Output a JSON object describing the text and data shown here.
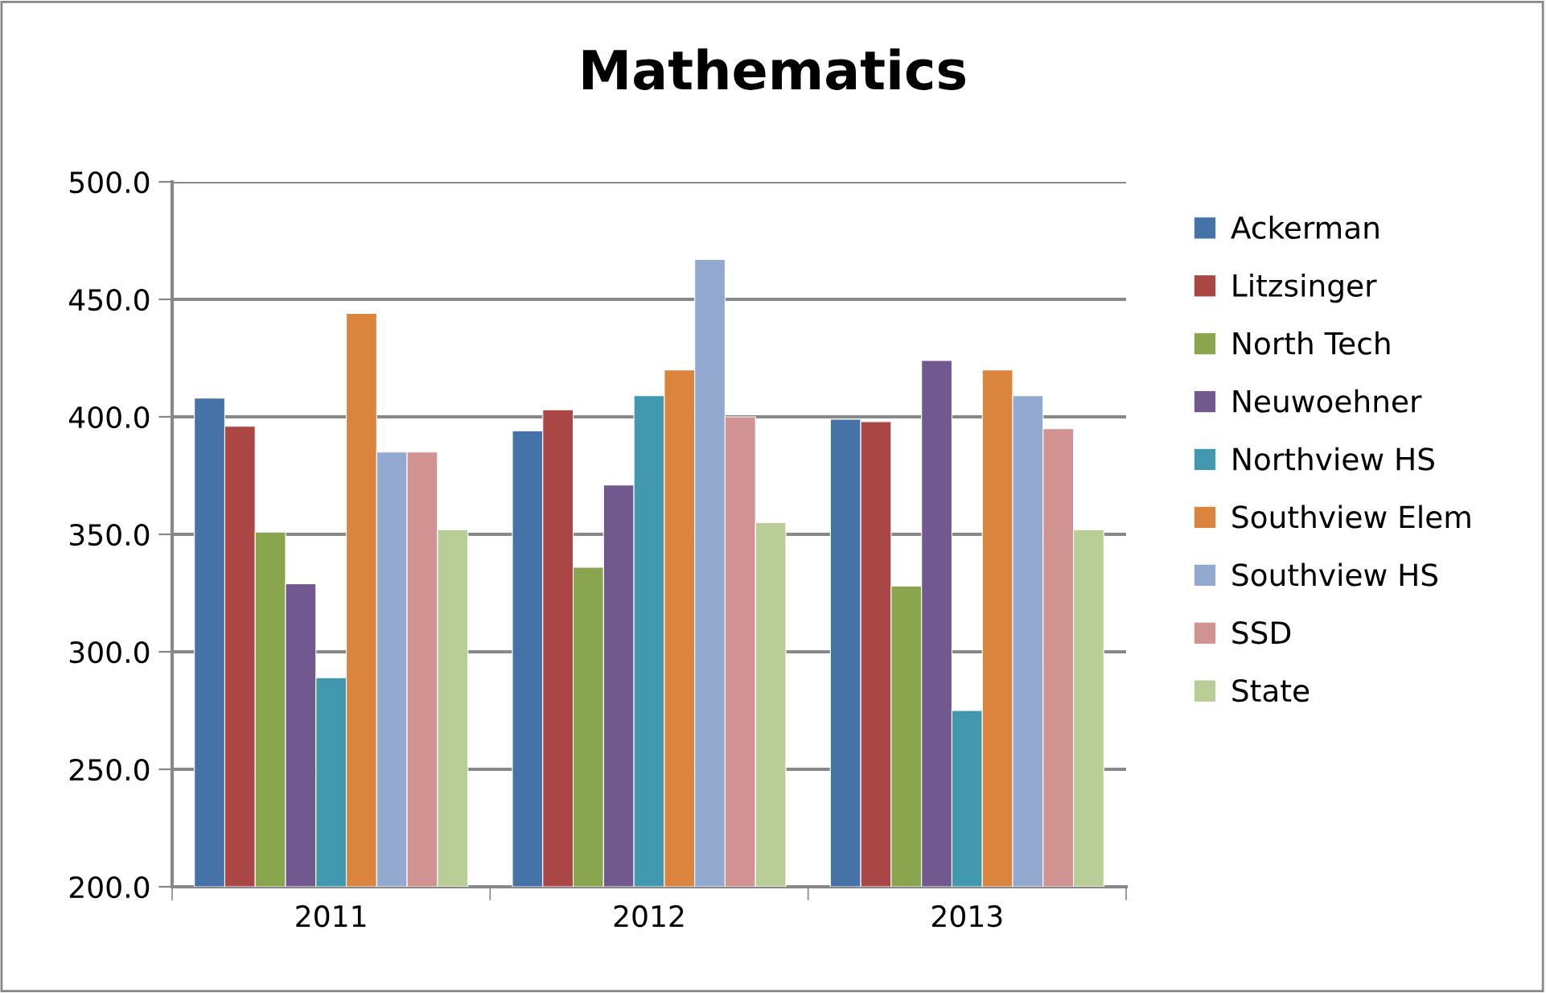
{
  "chart_data": {
    "type": "bar",
    "title": "Mathematics",
    "categories": [
      "2011",
      "2012",
      "2013"
    ],
    "series": [
      {
        "name": "Ackerman",
        "color": "#4572a7",
        "values": [
          408,
          394,
          399
        ]
      },
      {
        "name": "Litzsinger",
        "color": "#aa4643",
        "values": [
          396,
          403,
          398
        ]
      },
      {
        "name": "North Tech",
        "color": "#89a54e",
        "values": [
          351,
          336,
          328
        ]
      },
      {
        "name": "Neuwoehner",
        "color": "#71588f",
        "values": [
          329,
          371,
          424
        ]
      },
      {
        "name": "Northview HS",
        "color": "#4198af",
        "values": [
          289,
          409,
          275
        ]
      },
      {
        "name": "Southview Elem",
        "color": "#db843d",
        "values": [
          444,
          420,
          420
        ]
      },
      {
        "name": "Southview HS",
        "color": "#93a9cf",
        "values": [
          385,
          467,
          409
        ]
      },
      {
        "name": "SSD",
        "color": "#d19392",
        "values": [
          385,
          400,
          395
        ]
      },
      {
        "name": "State",
        "color": "#b9cd96",
        "values": [
          352,
          355,
          352
        ]
      }
    ],
    "ylim": [
      200,
      500
    ],
    "yticks": [
      {
        "value": 200,
        "label": "200.0"
      },
      {
        "value": 250,
        "label": "250.0"
      },
      {
        "value": 300,
        "label": "300.0"
      },
      {
        "value": 350,
        "label": "350.0"
      },
      {
        "value": 400,
        "label": "400.0"
      },
      {
        "value": 450,
        "label": "450.0"
      },
      {
        "value": 500,
        "label": "500.0"
      }
    ],
    "grid": "y",
    "legend": "right"
  }
}
